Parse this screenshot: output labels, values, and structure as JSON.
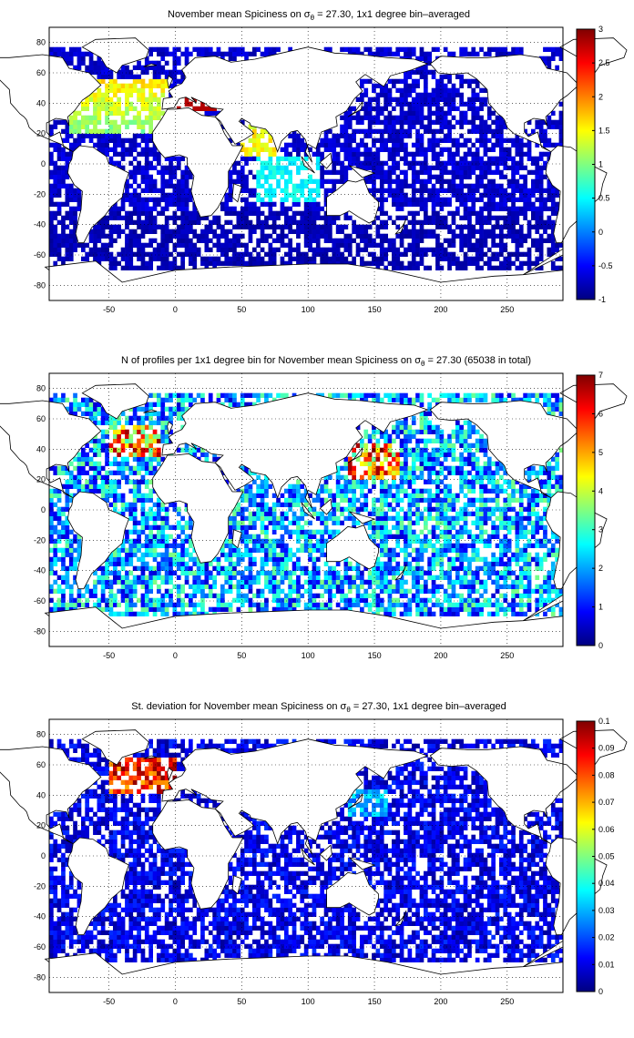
{
  "panels": [
    {
      "title_main": "November mean Spiciness on ",
      "title_sigma": "σ",
      "title_sub": "θ",
      "title_rest": " = 27.30, 1x1 degree bin–averaged",
      "x_ticks": [
        "-50",
        "0",
        "50",
        "100",
        "150",
        "200",
        "250"
      ],
      "y_ticks": [
        "80",
        "60",
        "40",
        "20",
        "0",
        "-20",
        "-40",
        "-60",
        "-80"
      ],
      "colorbar_ticks": [
        "3",
        "2.5",
        "2",
        "1.5",
        "1",
        "0.5",
        "0",
        "-0.5",
        "-1"
      ],
      "colorbar_range": [
        -1,
        3
      ]
    },
    {
      "title_main": "N of profiles per 1x1 degree bin for November mean Spiciness on ",
      "title_sigma": "σ",
      "title_sub": "θ",
      "title_rest": " = 27.30 (65038 in total)",
      "x_ticks": [
        "-50",
        "0",
        "50",
        "100",
        "150",
        "200",
        "250"
      ],
      "y_ticks": [
        "80",
        "60",
        "40",
        "20",
        "0",
        "-20",
        "-40",
        "-60",
        "-80"
      ],
      "colorbar_ticks": [
        "7",
        "6",
        "5",
        "4",
        "3",
        "2",
        "1",
        "0"
      ],
      "colorbar_range": [
        0,
        7
      ]
    },
    {
      "title_main": "St. deviation for November mean Spiciness on ",
      "title_sigma": "σ",
      "title_sub": "θ",
      "title_rest": " = 27.30, 1x1 degree bin–averaged",
      "x_ticks": [
        "-50",
        "0",
        "50",
        "100",
        "150",
        "200",
        "250"
      ],
      "y_ticks": [
        "80",
        "60",
        "40",
        "20",
        "0",
        "-20",
        "-40",
        "-60",
        "-80"
      ],
      "colorbar_ticks": [
        "0.1",
        "0.09",
        "0.08",
        "0.07",
        "0.06",
        "0.05",
        "0.04",
        "0.03",
        "0.02",
        "0.01",
        "0"
      ],
      "colorbar_range": [
        0,
        0.1
      ]
    }
  ],
  "map_extent": {
    "lon": [
      -95,
      292
    ],
    "lat": [
      -90,
      90
    ]
  },
  "colormap": "jet"
}
